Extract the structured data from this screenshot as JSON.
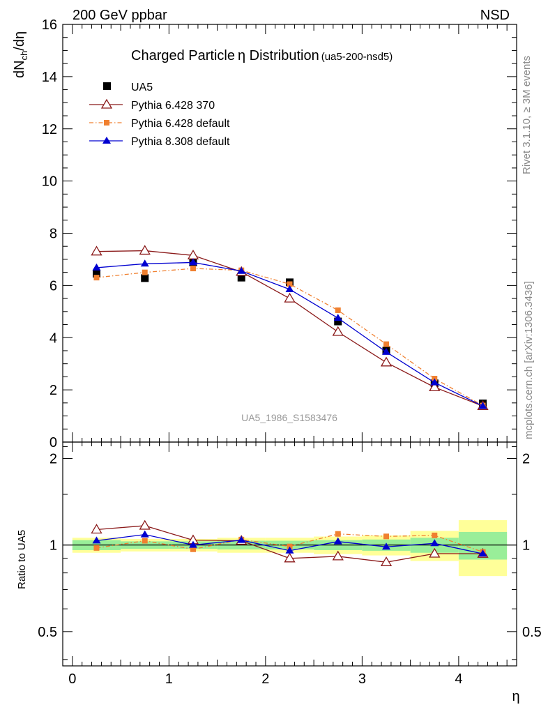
{
  "header": {
    "left": "200 GeV ppbar",
    "right": "NSD"
  },
  "chart_data": {
    "type": "line",
    "title": "Charged Particle",
    "title_symbol": "η",
    "title_rest": " Distribution",
    "title_tag": "(ua5-200-nsd5)",
    "xlabel": "η",
    "ylabel_main": "dN",
    "ylabel_sub": "ch",
    "ylabel_tail": "/dη",
    "ratio_ylabel": "Ratio to UA5",
    "watermark": "UA5_1986_S1583476",
    "side_text_top": "Rivet 3.1.10, ≥ 3M events",
    "side_text_bottom": "mcplots.cern.ch [arXiv:1306.3436]",
    "xlim": [
      -0.1,
      4.6
    ],
    "ylim": [
      0,
      16
    ],
    "ratio_ylim": [
      0.38,
      2.28
    ],
    "ratio_scale": "log",
    "legend_position": "top-left",
    "x_ticks": [
      "0",
      "1",
      "2",
      "3",
      "4"
    ],
    "y_ticks": [
      "0",
      "2",
      "4",
      "6",
      "8",
      "10",
      "12",
      "14",
      "16"
    ],
    "ratio_ticks": [
      "0.5",
      "1",
      "2"
    ],
    "x": [
      0.25,
      0.75,
      1.25,
      1.75,
      2.25,
      2.75,
      3.25,
      3.75,
      4.25
    ],
    "bin_edges": [
      0,
      0.5,
      1,
      1.5,
      2,
      2.5,
      3,
      3.5,
      4,
      4.5
    ],
    "band_inner": [
      0.04,
      0.03,
      0.03,
      0.035,
      0.035,
      0.04,
      0.045,
      0.06,
      0.11
    ],
    "band_outer": [
      0.06,
      0.05,
      0.05,
      0.06,
      0.06,
      0.07,
      0.08,
      0.12,
      0.22
    ],
    "series": [
      {
        "name": "UA5",
        "color": "#000000",
        "marker": "square",
        "values": [
          6.45,
          6.28,
          6.88,
          6.3,
          6.12,
          4.62,
          3.5,
          2.25,
          1.48
        ]
      },
      {
        "name": "Pythia 6.428 370",
        "color": "#8b1a1a",
        "marker": "triangle-open",
        "line": "solid",
        "values": [
          7.3,
          7.33,
          7.15,
          6.52,
          5.5,
          4.22,
          3.05,
          2.1,
          1.38
        ]
      },
      {
        "name": "Pythia 6.428 default",
        "color": "#f08030",
        "marker": "square-small",
        "line": "dashdot",
        "values": [
          6.3,
          6.5,
          6.65,
          6.58,
          6.05,
          5.05,
          3.75,
          2.43,
          1.4
        ]
      },
      {
        "name": "Pythia 8.308 default",
        "color": "#0000d0",
        "marker": "triangle",
        "line": "solid",
        "values": [
          6.68,
          6.83,
          6.88,
          6.55,
          5.85,
          4.75,
          3.45,
          2.28,
          1.38
        ]
      }
    ]
  }
}
